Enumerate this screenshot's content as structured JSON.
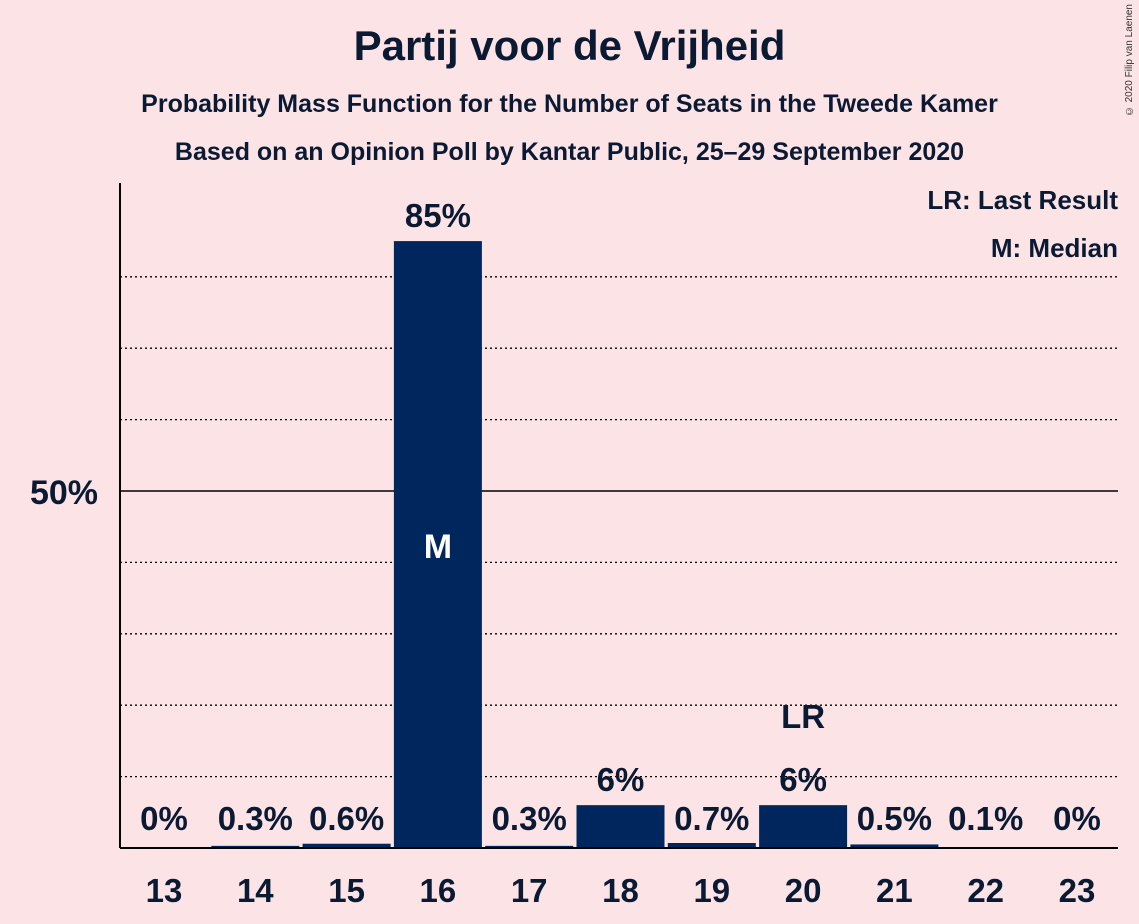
{
  "title": "Partij voor de Vrijheid",
  "subtitle1": "Probability Mass Function for the Number of Seats in the Tweede Kamer",
  "subtitle2": "Based on an Opinion Poll by Kantar Public, 25–29 September 2020",
  "copyright": "© 2020 Filip van Laenen",
  "legend": {
    "last_result": "LR: Last Result",
    "median": "M: Median"
  },
  "colors": {
    "background": "#FCE4E6",
    "bar": "#00275D",
    "text": "#0B1A33"
  },
  "chart_data": {
    "type": "bar",
    "categories": [
      "13",
      "14",
      "15",
      "16",
      "17",
      "18",
      "19",
      "20",
      "21",
      "22",
      "23"
    ],
    "values": [
      0,
      0.3,
      0.6,
      85,
      0.3,
      6,
      0.7,
      6,
      0.5,
      0.1,
      0
    ],
    "value_labels": [
      "0%",
      "0.3%",
      "0.6%",
      "85%",
      "0.3%",
      "6%",
      "0.7%",
      "6%",
      "0.5%",
      "0.1%",
      "0%"
    ],
    "ylim": [
      0,
      93
    ],
    "y_tick_label": "50%",
    "y_tick_value": 50,
    "gridlines": [
      10,
      20,
      30,
      40,
      60,
      70,
      80
    ],
    "median_seat": "16",
    "median_marker": "M",
    "last_result_seat": "20",
    "last_result_marker": "LR",
    "legend_position": "top-right",
    "grid": true
  }
}
